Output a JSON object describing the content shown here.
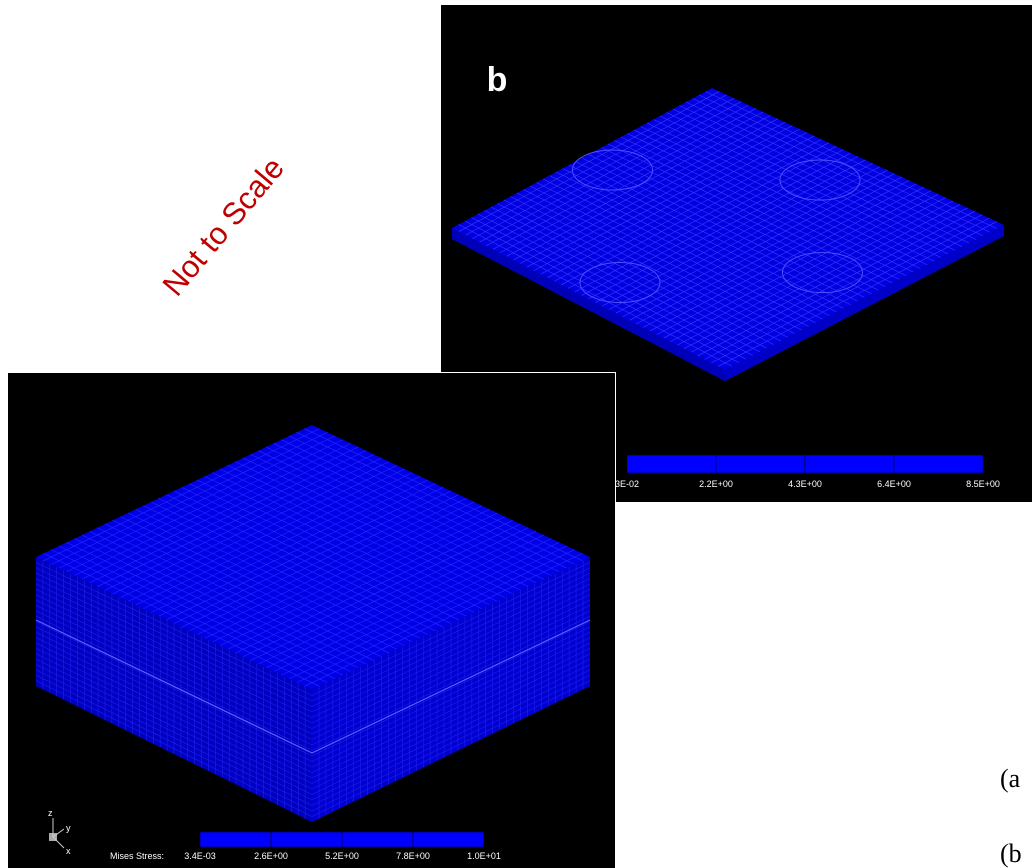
{
  "watermark": "Not to Scale",
  "panel_b": {
    "label": "b",
    "legend_labels": [
      "3E-02",
      "2.2E+00",
      "4.3E+00",
      "6.4E+00",
      "8.5E+00"
    ]
  },
  "panel_a": {
    "legend_title": "Mises Stress:",
    "legend_labels": [
      "3.4E-03",
      "2.6E+00",
      "5.2E+00",
      "7.8E+00",
      "1.0E+01"
    ],
    "axes": [
      "z",
      "y",
      "x"
    ]
  },
  "captions": [
    "(a",
    "(b"
  ]
}
